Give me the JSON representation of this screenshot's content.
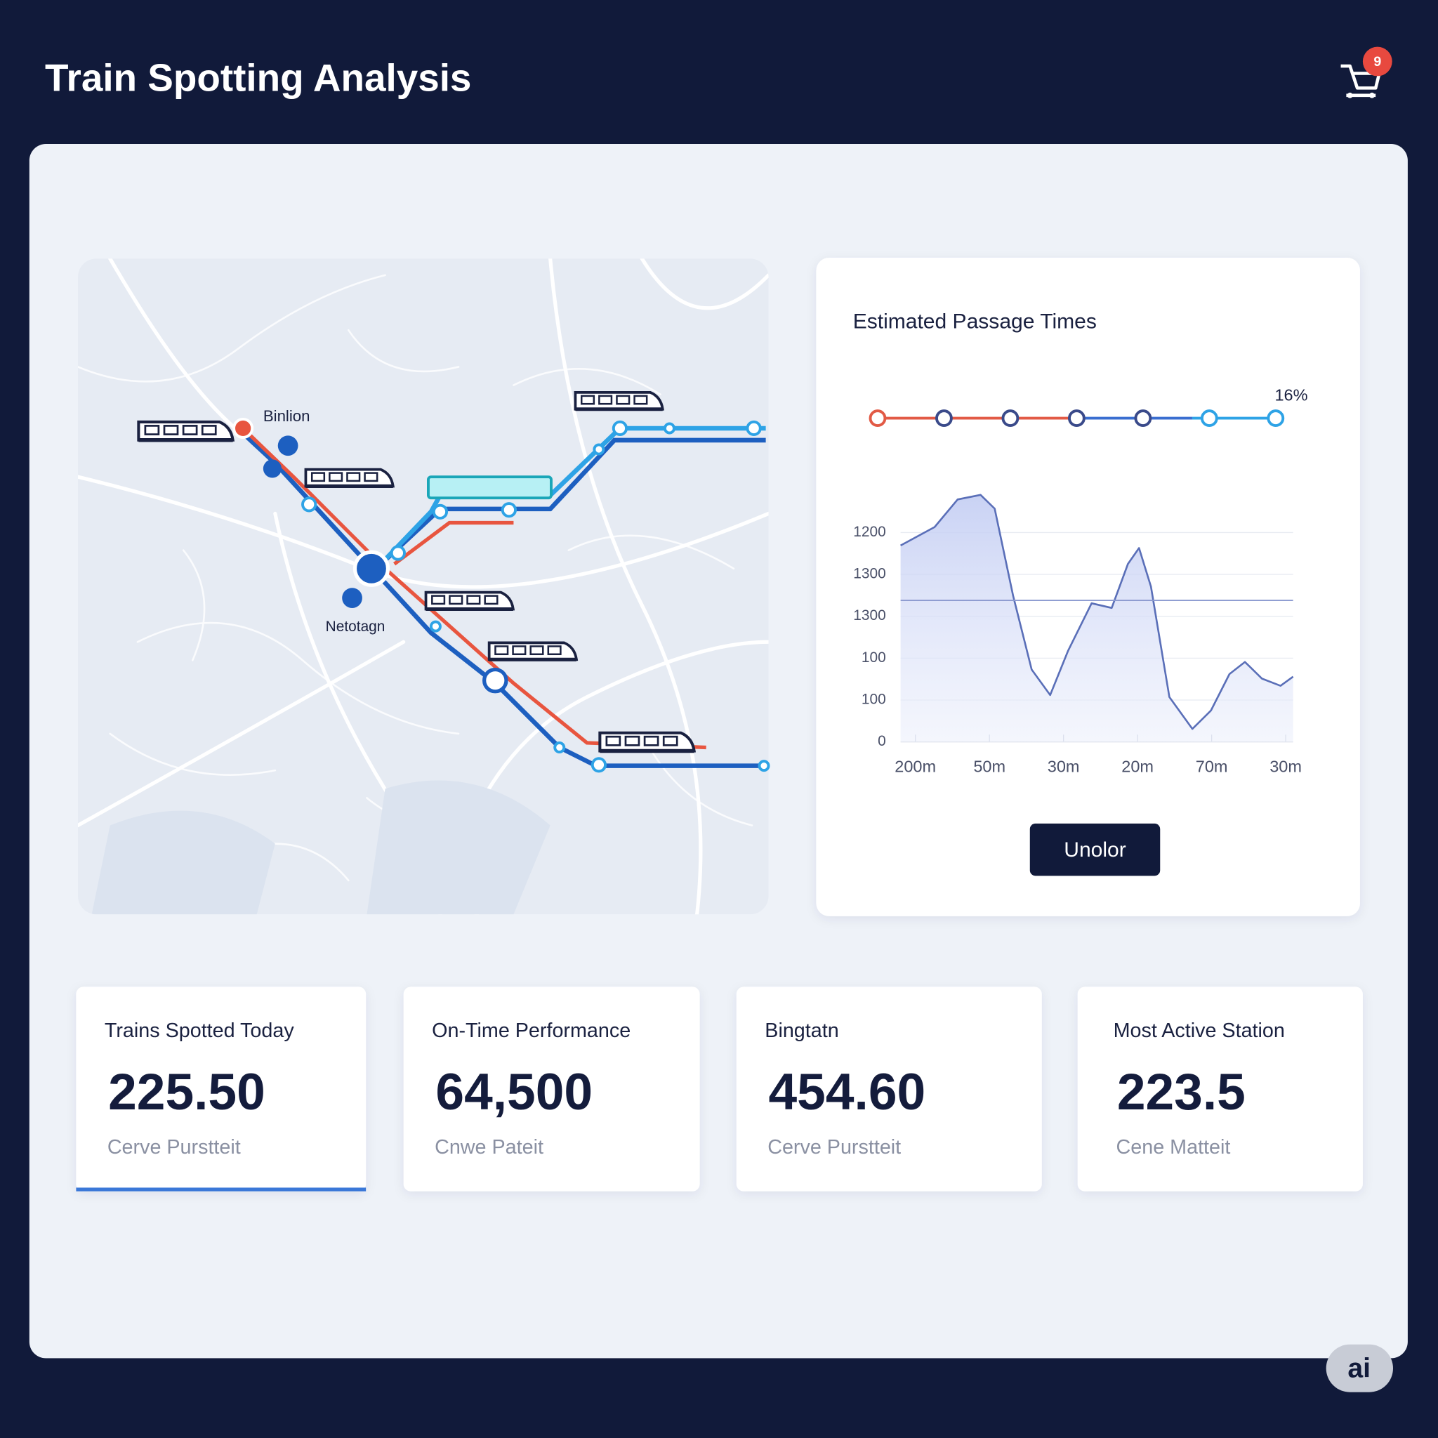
{
  "header": {
    "title": "Train Spotting Analysis",
    "cart_badge": "9"
  },
  "map": {
    "labels": [
      "Binlion",
      "Netotagn"
    ]
  },
  "chart_data": {
    "type": "area",
    "title": "Estimated Passage Times",
    "timeline_label": "16%",
    "x": [
      -0.2,
      0.26,
      0.57,
      0.88,
      1.07,
      1.32,
      1.57,
      1.82,
      2.06,
      2.38,
      2.65,
      2.87,
      3.02,
      3.18,
      3.43,
      3.74,
      3.99,
      4.24,
      4.45,
      4.68,
      4.93,
      5.1
    ],
    "series": [
      {
        "name": "Passages",
        "color": "#5a6fb8",
        "values": [
          469,
          513,
          579,
          590,
          557,
          349,
          173,
          112,
          217,
          331,
          320,
          425,
          463,
          371,
          107,
          31,
          75,
          162,
          191,
          151,
          134,
          156
        ]
      }
    ],
    "reference_line": 338,
    "xlim": [
      -0.2,
      5.1
    ],
    "xticks": [
      {
        "value": 0,
        "label": "200m"
      },
      {
        "value": 1,
        "label": "50m"
      },
      {
        "value": 2,
        "label": "30m"
      },
      {
        "value": 3,
        "label": "20m"
      },
      {
        "value": 4,
        "label": "70m"
      },
      {
        "value": 5,
        "label": "30m"
      }
    ],
    "ylim": [
      0,
      600
    ],
    "yticks": [
      0,
      100,
      {
        "value": 200,
        "label": "100"
      },
      {
        "value": 300,
        "label": "1300"
      },
      {
        "value": 400,
        "label": "1300"
      },
      {
        "value": 500,
        "label": "1200"
      }
    ],
    "grid": true
  },
  "button": "Unolor",
  "cards": [
    {
      "title": "Trains Spotted Today",
      "value": "225.50",
      "caption": "Cerve Purstteit"
    },
    {
      "title": "On-Time Performance",
      "value": "64,500",
      "caption": "Cnwe Pateit"
    },
    {
      "title": "Bingtatn",
      "value": "454.60",
      "caption": "Cerve Purstteit"
    },
    {
      "title": "Most Active Station",
      "value": "223.5",
      "caption": "Cene Matteit"
    }
  ],
  "watermark": "ai"
}
